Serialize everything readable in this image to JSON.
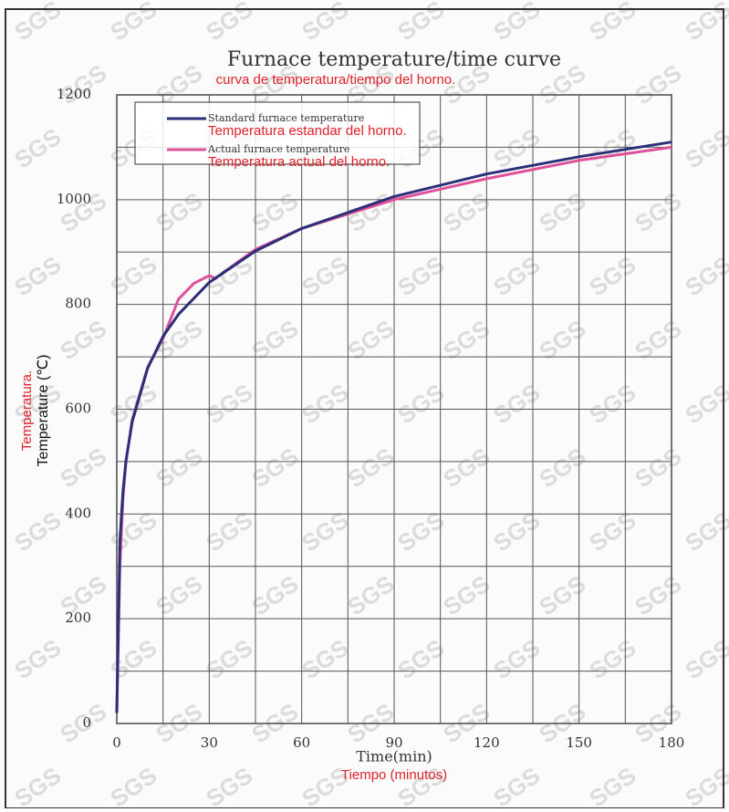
{
  "chart_data": {
    "type": "line",
    "title": "Furnace temperature/time curve",
    "subtitle": "curva de temperatura/tiempo del horno.",
    "xlabel": "Time(min)",
    "xlabel_translation": "Tiempo (minutos)",
    "ylabel": "Temperature (℃)",
    "ylabel_translation": "Temperatura.",
    "watermark": "SGS",
    "xlim": [
      0,
      180
    ],
    "xticks": [
      0,
      30,
      60,
      90,
      120,
      150,
      180
    ],
    "xgrid": [
      0,
      15,
      30,
      45,
      60,
      75,
      90,
      105,
      120,
      135,
      150,
      165,
      180
    ],
    "ylim": [
      0,
      1200
    ],
    "yticks": [
      0,
      200,
      400,
      600,
      800,
      1000,
      1200
    ],
    "ygrid": [
      0,
      100,
      200,
      300,
      400,
      500,
      600,
      700,
      800,
      900,
      1000,
      1100,
      1200
    ],
    "grid": true,
    "legend": "upper left",
    "series": [
      {
        "name": "Standard furnace temperature",
        "translation": "Temperatura estandar del horno.",
        "color": "#2a2f78",
        "x": [
          0,
          1,
          2,
          3,
          5,
          10,
          15,
          20,
          30,
          45,
          60,
          90,
          120,
          150,
          180
        ],
        "values": [
          20,
          349,
          444,
          502,
          576,
          678,
          739,
          781,
          842,
          902,
          945,
          1006,
          1049,
          1082,
          1110
        ]
      },
      {
        "name": "Actual furnace temperature",
        "translation": "Temperatura actual del horno.",
        "color": "#e0509a",
        "x": [
          0,
          1,
          2,
          3,
          5,
          10,
          15,
          20,
          25,
          30,
          32,
          45,
          60,
          90,
          120,
          150,
          180
        ],
        "values": [
          20,
          300,
          430,
          500,
          580,
          680,
          735,
          810,
          840,
          855,
          850,
          905,
          945,
          1000,
          1040,
          1075,
          1100
        ]
      }
    ]
  }
}
